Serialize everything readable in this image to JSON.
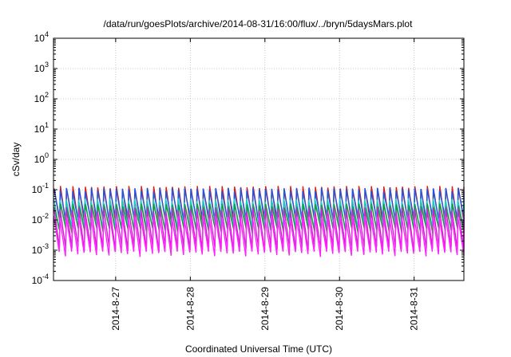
{
  "chart_data": {
    "type": "line",
    "title": "/data/run/goesPlots/archive/2014-08-31/16:00/flux/../bryn/5daysMars.plot",
    "xlabel": "Coordinated Universal Time (UTC)",
    "ylabel": "cSv/day",
    "yscale": "log",
    "ylim": [
      0.0001,
      10000
    ],
    "xlim": [
      "2014-08-26 04:00",
      "2014-08-31 16:00"
    ],
    "grid": true,
    "legend": "none",
    "y_ticks": [
      {
        "base": "10",
        "exp": "-4",
        "value": 0.0001
      },
      {
        "base": "10",
        "exp": "-3",
        "value": 0.001
      },
      {
        "base": "10",
        "exp": "-2",
        "value": 0.01
      },
      {
        "base": "10",
        "exp": "-1",
        "value": 0.1
      },
      {
        "base": "10",
        "exp": "0",
        "value": 1
      },
      {
        "base": "10",
        "exp": "1",
        "value": 10
      },
      {
        "base": "10",
        "exp": "2",
        "value": 100
      },
      {
        "base": "10",
        "exp": "3",
        "value": 1000
      },
      {
        "base": "10",
        "exp": "4",
        "value": 10000
      }
    ],
    "x_ticks": [
      "2014-8-27",
      "2014-8-28",
      "2014-8-29",
      "2014-8-30",
      "2014-8-31"
    ],
    "sawtooth_period_hours": 2.0,
    "series": [
      {
        "color": "#d62020",
        "peak": 0.115,
        "trough": 0.0075
      },
      {
        "color": "#2255dd",
        "peak": 0.1,
        "trough": 0.011
      },
      {
        "color": "#20c8c8",
        "peak": 0.045,
        "trough": 0.0055
      },
      {
        "color": "#1a9a3a",
        "peak": 0.03,
        "trough": 0.0042
      },
      {
        "color": "#cc22cc",
        "peak": 0.022,
        "trough": 0.0011
      },
      {
        "color": "#ff22ff",
        "peak": 0.012,
        "trough": 0.00075
      }
    ]
  }
}
